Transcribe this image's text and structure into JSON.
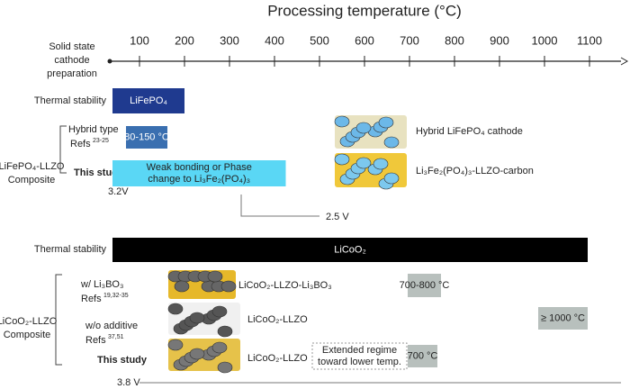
{
  "axis": {
    "title": "Processing temperature (°C)",
    "ticks": [
      100,
      200,
      300,
      400,
      500,
      600,
      700,
      800,
      900,
      1000,
      1100
    ],
    "row_label": [
      "Solid state",
      "cathode",
      "preparation"
    ]
  },
  "lfp": {
    "thermal": {
      "label": "Thermal stability",
      "bar": {
        "text": [
          "LiFePO₄"
        ],
        "range": [
          40,
          200
        ]
      }
    },
    "group": [
      "LiFePO₄-LLZO",
      "Composite"
    ],
    "hybrid": {
      "label": "Hybrid type",
      "refs": "Refs",
      "ref_nums": "23-25",
      "bar": {
        "text": [
          "80-150 °C"
        ],
        "range": [
          70,
          162
        ]
      }
    },
    "study": {
      "label": "This study",
      "bar": {
        "text": [
          "Weak bonding or Phase",
          "change to Li₃Fe₂(PO₄)₃"
        ],
        "range": [
          40,
          425
        ]
      }
    },
    "voltage_start": "3.2V",
    "voltage_end": "2.5 V",
    "images": [
      "Hybrid LiFePO₄ cathode",
      "Li₃Fe₂(PO₄)₃-LLZO-carbon"
    ]
  },
  "lco": {
    "thermal": {
      "label": "Thermal stability",
      "bar": {
        "text": [
          "LiCoO₂"
        ],
        "range": [
          40,
          1096
        ]
      }
    },
    "group": [
      "LiCoO₂-LLZO",
      "Composite"
    ],
    "boron": {
      "label": "w/ Li₃BO₃",
      "refs": "Refs",
      "ref_nums": "19,32-35",
      "image": "LiCoO₂-LLZO-Li₃BO₃",
      "bar": {
        "text": [
          "700-800 °C"
        ],
        "range": [
          696,
          770
        ]
      }
    },
    "none": {
      "label": "w/o additive",
      "refs": "Refs",
      "ref_nums": "37,51",
      "image": "LiCoO₂-LLZO",
      "bar": {
        "text": [
          "≥ 1000 °C"
        ],
        "range": [
          986,
          1096
        ]
      }
    },
    "study": {
      "label": "This study",
      "image": "LiCoO₂-LLZO",
      "extended": {
        "text": [
          "Extended regime",
          "toward lower temp."
        ],
        "range": [
          484,
          694
        ]
      },
      "bar": {
        "text": [
          "700 °C"
        ],
        "range": [
          696,
          762
        ]
      }
    },
    "voltage": "3.8 V"
  }
}
